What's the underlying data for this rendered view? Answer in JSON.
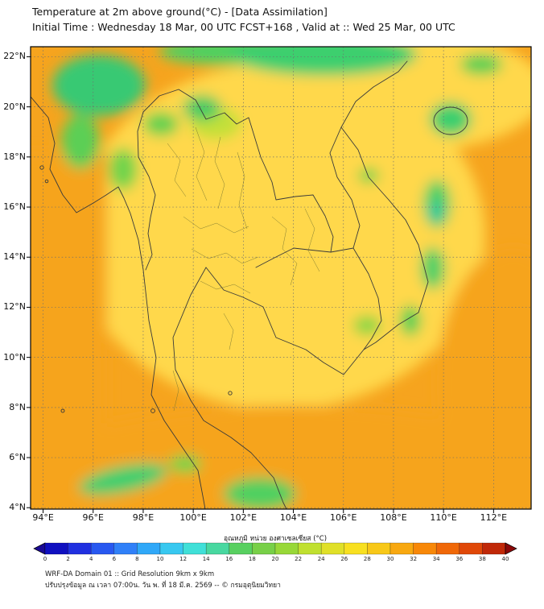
{
  "header": {
    "line1": "Temperature at 2m above ground(°C) - [Data Assimilation]",
    "line2": "Initial Time : Wednesday 18 Mar, 00 UTC FCST+168 , Valid at :: Wed 25 Mar, 00 UTC"
  },
  "map": {
    "lat_ticks": [
      "22°N",
      "20°N",
      "18°N",
      "16°N",
      "14°N",
      "12°N",
      "10°N",
      "8°N",
      "6°N",
      "4°N"
    ],
    "lon_ticks": [
      "94°E",
      "96°E",
      "98°E",
      "100°E",
      "102°E",
      "104°E",
      "106°E",
      "108°E",
      "110°E",
      "112°E"
    ]
  },
  "colorbar": {
    "title": "อุณหภูมิ หน่วย องศาเซลเซียส (°C)",
    "ticks": [
      "0",
      "2",
      "4",
      "6",
      "8",
      "10",
      "12",
      "14",
      "16",
      "18",
      "20",
      "22",
      "24",
      "26",
      "28",
      "30",
      "32",
      "34",
      "36",
      "38",
      "40"
    ],
    "below_color": "#1a0a96",
    "above_color": "#8b0808",
    "colors": [
      "#1010c0",
      "#2030e0",
      "#2858f0",
      "#3080f8",
      "#30a8f8",
      "#38c8f0",
      "#40e0d8",
      "#48d8a0",
      "#58d060",
      "#78d048",
      "#98d838",
      "#c0e030",
      "#e0e028",
      "#f8e020",
      "#f8c818",
      "#f8a810",
      "#f88808",
      "#f06808",
      "#e04808",
      "#c02808"
    ]
  },
  "footer": {
    "line1": "WRF-DA Domain 01 :: Grid Resolution 9km x 9km",
    "line2": "ปรับปรุงข้อมูล ณ เวลา 07:00น. วัน พ. ที่ 18 มี.ค. 2569 -- © กรมอุตุนิยมวิทยา"
  },
  "chart_data": {
    "type": "heatmap",
    "title": "Temperature at 2m above ground(°C) - [Data Assimilation]",
    "subtitle": "Initial Time : Wednesday 18 Mar, 00 UTC FCST+168 , Valid at :: Wed 25 Mar, 00 UTC",
    "x_ticks_deg_e": [
      94,
      96,
      98,
      100,
      102,
      104,
      106,
      108,
      110,
      112
    ],
    "y_ticks_deg_n": [
      22,
      20,
      18,
      16,
      14,
      12,
      10,
      8,
      6,
      4
    ],
    "grid": true,
    "colorbar": {
      "label": "อุณหภูมิ หน่วย องศาเซลเซียส (°C)",
      "range": [
        0,
        40
      ],
      "tick_step": 2,
      "position": "bottom",
      "style": "rainbow blue-to-red with out-of-range arrows"
    },
    "field_summary": [
      {
        "region": "Bay of Bengal / Andaman Sea (west of map)",
        "approx_value_c": "30-33"
      },
      {
        "region": "Gulf of Thailand and seas south/east",
        "approx_value_c": "30-34"
      },
      {
        "region": "Central Thailand / Indochina lowlands",
        "approx_value_c": "26-30"
      },
      {
        "region": "Northern mountains (Myanmar, N Thailand, N Laos/Vietnam border band)",
        "approx_value_c": "18-24"
      },
      {
        "region": "Vietnam highlands / Annamite range and Hainan",
        "approx_value_c": "16-24"
      },
      {
        "region": "Southern Malay peninsula highlands",
        "approx_value_c": "20-24"
      }
    ]
  }
}
